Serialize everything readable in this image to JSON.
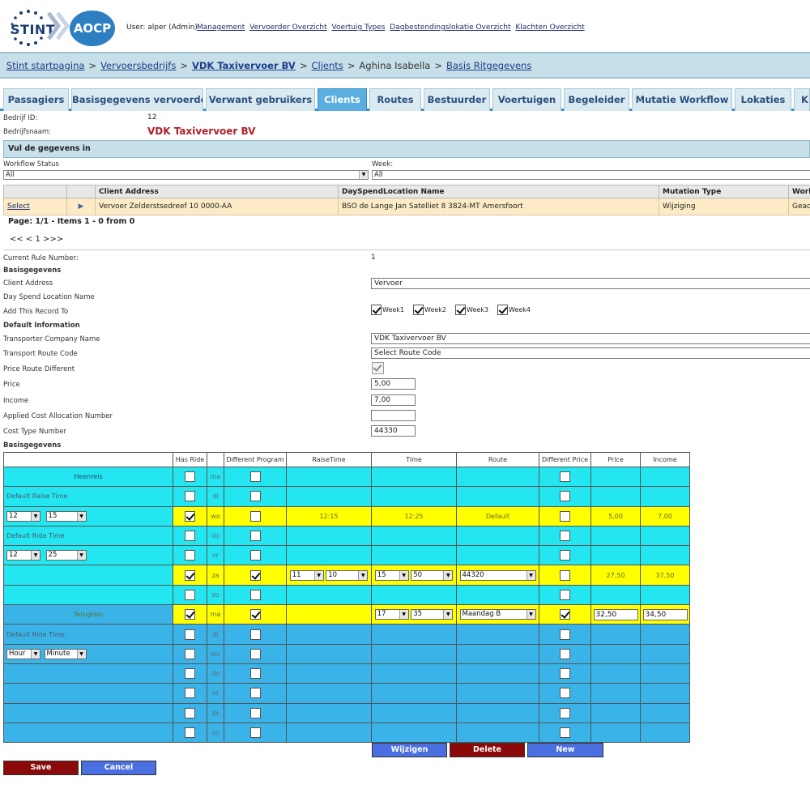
{
  "header": {
    "logo_left": "STINT",
    "logo_right": "AOCP",
    "user": "User: alper (Admin)",
    "nav": [
      "Management",
      "Vervoerder Overzicht",
      "Voertuig Types",
      "Dagbestendingslokatie Overzicht",
      "Klachten Overzicht"
    ]
  },
  "breadcrumb": {
    "items": [
      "Stint startpagina",
      "Vervoersbedrijfs",
      "VDK Taxivervoer BV",
      "Clients",
      "Aghina Isabella",
      "Basis Ritgegevens"
    ],
    "separator": ">"
  },
  "tabs": [
    "Passagiers",
    "Basisgegevens vervoerder",
    "Verwant gebruikers",
    "Clients",
    "Routes",
    "Bestuurder",
    "Voertuigen",
    "Begeleider",
    "Mutatie Workflow",
    "Lokaties",
    "K"
  ],
  "company": {
    "id_label": "Bedrijf ID:",
    "id_value": "12",
    "name_label": "Bedrijfsnaam:",
    "name_value": "VDK Taxivervoer BV"
  },
  "section_title": "Vul de gegevens in",
  "filters": {
    "workflow_label": "Workflow Status",
    "workflow_value": "All",
    "week_label": "Week:",
    "week_value": "All"
  },
  "grid": {
    "columns": [
      "",
      "",
      "Client Address",
      "DaySpendLocation Name",
      "Mutation Type",
      "Work"
    ],
    "row": {
      "select": "Select",
      "client_address": "Vervoer Zelderstsedreef 10 0000-AA",
      "location": "BSO de Lange Jan Satelliet 8 3824-MT Amersfoort",
      "mutation": "Wijziging",
      "work": "Geaco"
    },
    "page_info": "Page: 1/1 - Items 1 - 0 from 0",
    "pager": "<< < 1 >>>"
  },
  "form": {
    "current_rule_label": "Current Rule Number:",
    "current_rule_value": "1",
    "basis_label": "Basisgegevens",
    "client_address_label": "Client Address",
    "client_address_value": "Vervoer",
    "dayspend_label": "Day Spend Location Name",
    "add_record_label": "Add This Record To",
    "weeks": [
      "Week1",
      "Week2",
      "Week3",
      "Week4"
    ],
    "default_info_label": "Default Information",
    "transporter_label": "Transporter Company Name",
    "transporter_value": "VDK Taxivervoer BV",
    "route_code_label": "Transport Route Code",
    "route_code_value": "Select Route Code",
    "price_diff_label": "Price Route Different",
    "price_label": "Price",
    "price_value": "5,00",
    "income_label": "Income",
    "income_value": "7,00",
    "applied_cost_label": "Applied Cost Allocation Number",
    "applied_cost_value": "",
    "cost_type_label": "Cost Type Number",
    "cost_type_value": "44330",
    "basis2_label": "Basisgegevens"
  },
  "schedule": {
    "headers": [
      "",
      "Has Ride",
      "",
      "Different Program",
      "RaiseTime",
      "Time",
      "Route",
      "Different Price",
      "Price",
      "Income"
    ],
    "heenreis": "Heenreis",
    "terugreis": "Terugreis",
    "default_raise_time": "Default Raise Time",
    "default_ride_time": "Default Ride Time",
    "default_ride_time2": "Default Ride Time:",
    "days": [
      "ma",
      "di",
      "wo",
      "do",
      "vr",
      "za",
      "zo"
    ],
    "raise_hour": "12",
    "raise_min": "15",
    "ride_hour": "12",
    "ride_min": "25",
    "wo_raise": "12:15",
    "wo_time": "12:25",
    "wo_route": "Default",
    "wo_price": "5,00",
    "wo_income": "7,00",
    "za_raise_h": "11",
    "za_raise_m": "10",
    "za_time_h": "15",
    "za_time_m": "50",
    "za_route": "44320",
    "za_price": "27,50",
    "za_income": "37,50",
    "ma2_time_h": "17",
    "ma2_time_m": "35",
    "ma2_route": "Maandag B",
    "ma2_price": "32,50",
    "ma2_income": "34,50",
    "hour": "Hour",
    "minute": "Minute"
  },
  "buttons": {
    "wijzigen": "Wijzigen",
    "delete": "Delete",
    "new": "New",
    "save": "Save",
    "cancel": "Cancel"
  },
  "colors": {
    "cyan_row": "#23e6f0",
    "yellow_row": "#ffff00",
    "blue_row": "#3ab4e8",
    "active_tab": "#5aaee0",
    "company_red": "#b0202a"
  }
}
